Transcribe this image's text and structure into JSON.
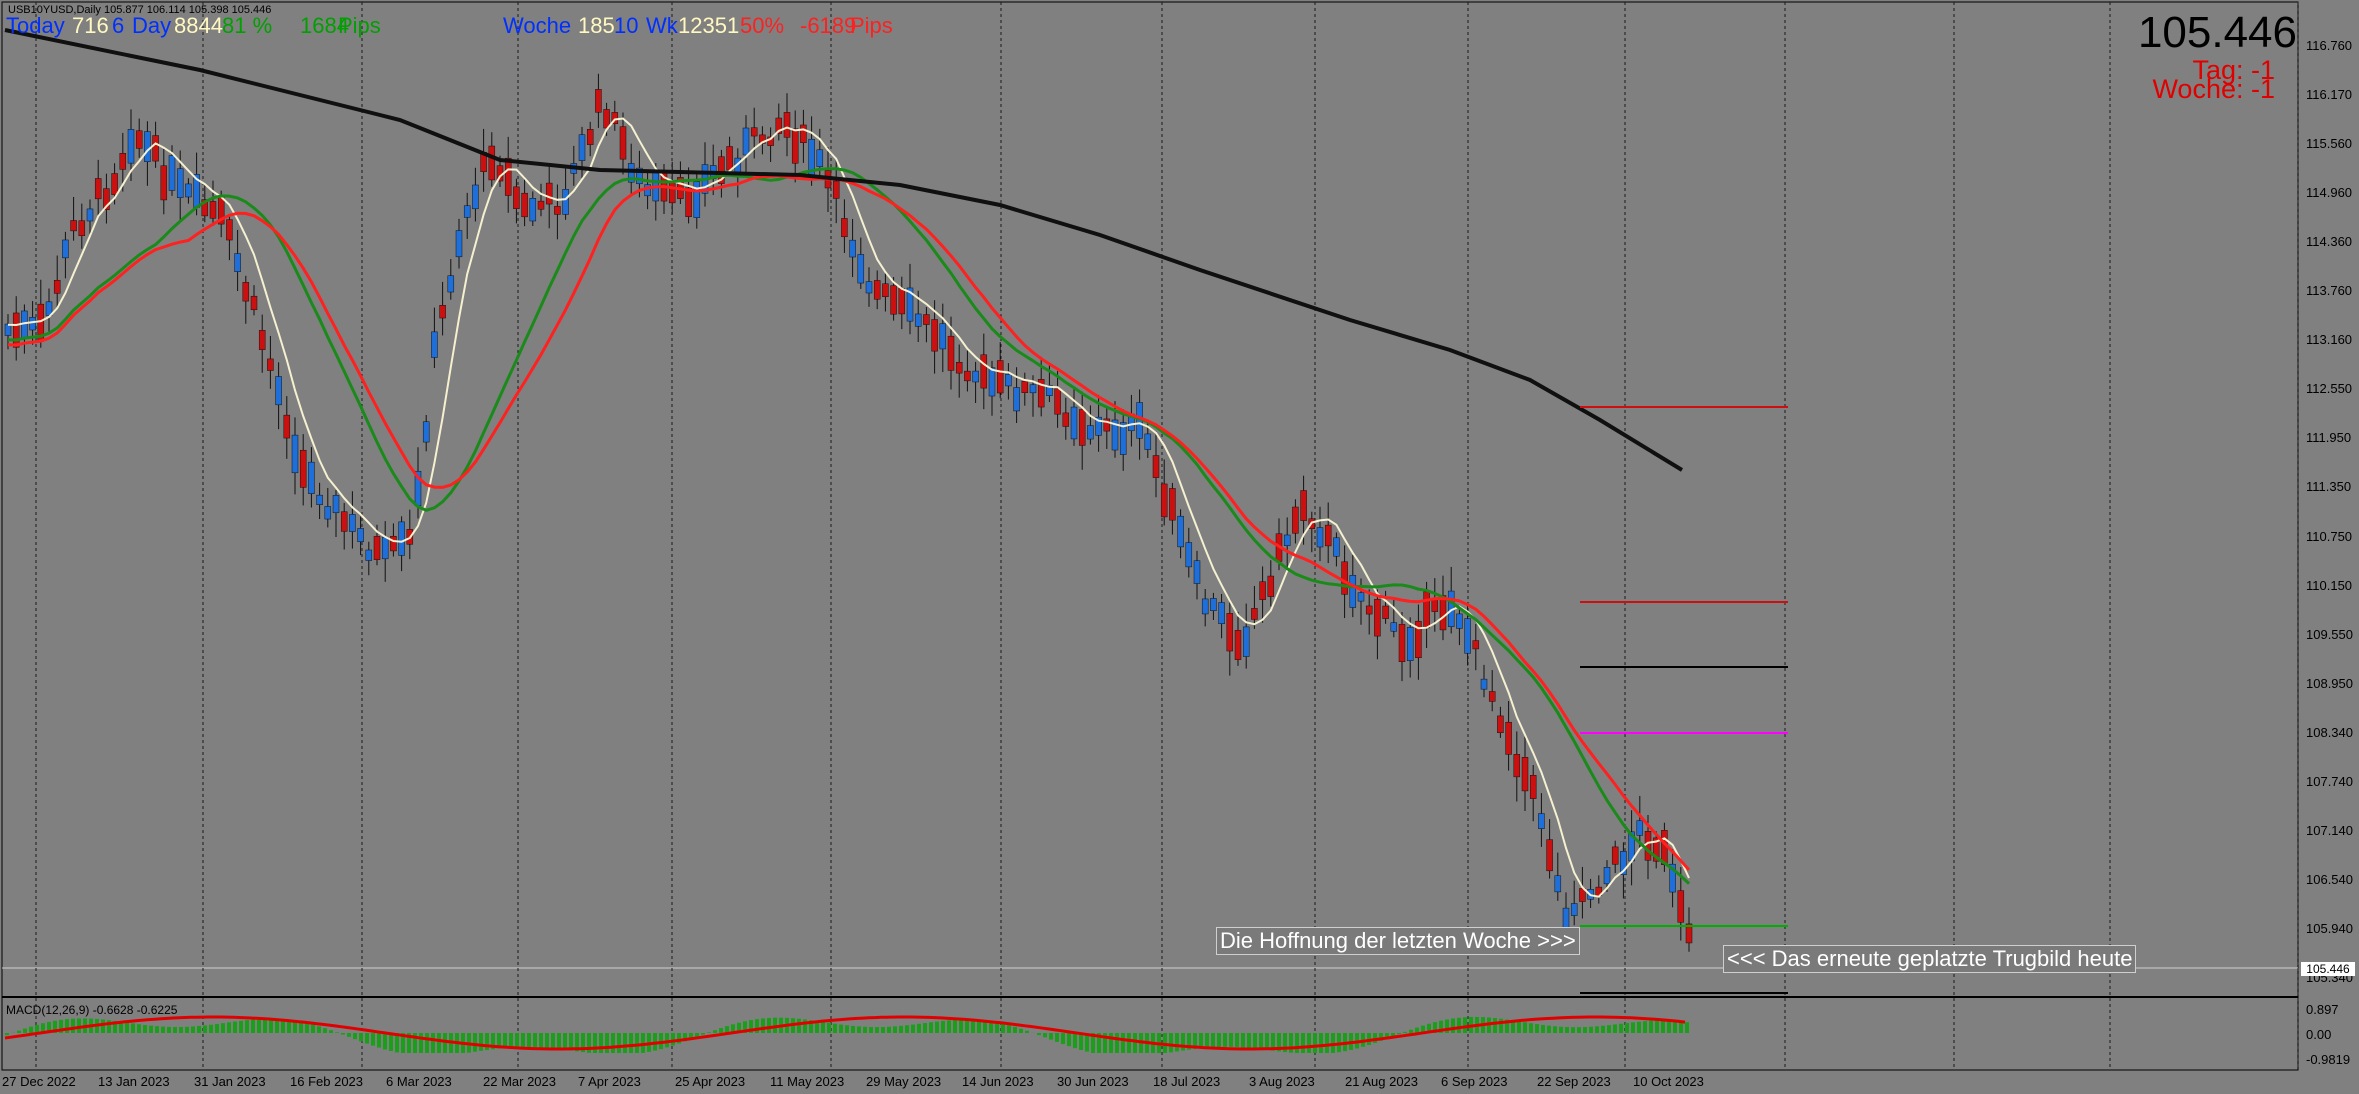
{
  "header": {
    "symbol_line": "USB10YUSD,Daily  105.877 106.114 105.398 105.446",
    "today_label": "Today",
    "today_val1": "716",
    "today_val2": "6",
    "day_label": "Day",
    "day_val": "8844",
    "pct_val": "81 %",
    "pips_val": "1684",
    "pips_label": "Pips",
    "woche_label": "Woche",
    "woche_val1": "185",
    "woche_val2": "10",
    "wk_label": "Wk",
    "wk_val": "12351",
    "wk_pct": "50%",
    "wk_pips_val": "-6189",
    "wk_pips_label": "Pips"
  },
  "price_panel": {
    "current_price": "105.446",
    "tag": "Tag: -1",
    "woche": "Woche: -1"
  },
  "y_axis_labels": [
    "116.760",
    "116.170",
    "115.560",
    "114.960",
    "114.360",
    "113.760",
    "113.160",
    "112.550",
    "111.950",
    "111.350",
    "110.750",
    "110.150",
    "109.550",
    "108.950",
    "108.340",
    "107.740",
    "107.140",
    "106.540",
    "105.940",
    "105.340"
  ],
  "current_price_tag": "105.446",
  "x_axis_labels": [
    "27 Dec 2022",
    "13 Jan 2023",
    "31 Jan 2023",
    "16 Feb 2023",
    "6 Mar 2023",
    "22 Mar 2023",
    "7 Apr 2023",
    "25 Apr 2023",
    "11 May 2023",
    "29 May 2023",
    "14 Jun 2023",
    "30 Jun 2023",
    "18 Jul 2023",
    "3 Aug 2023",
    "21 Aug 2023",
    "6 Sep 2023",
    "22 Sep 2023",
    "10 Oct 2023"
  ],
  "annotations": {
    "note_left": "Die Hoffnung der letzten Woche >>>",
    "note_right": "<<< Das erneute geplatzte Trugbild heute"
  },
  "macd": {
    "label": "MACD(12,26,9) -0.6628 -0.6225",
    "y_labels": [
      "0.897",
      "0.00",
      "-0.9819"
    ]
  },
  "colors": {
    "background": "#808080",
    "bull": "#1e6fd9",
    "bear": "#cc1010",
    "ma_fast": "#f5f0d0",
    "ma_mid": "#1a8a1a",
    "ma_slow_red": "#ff2020",
    "ma_200": "#101010",
    "magenta": "#ff00ff",
    "macd_hist": "#18a018",
    "macd_signal": "#e00000"
  }
}
